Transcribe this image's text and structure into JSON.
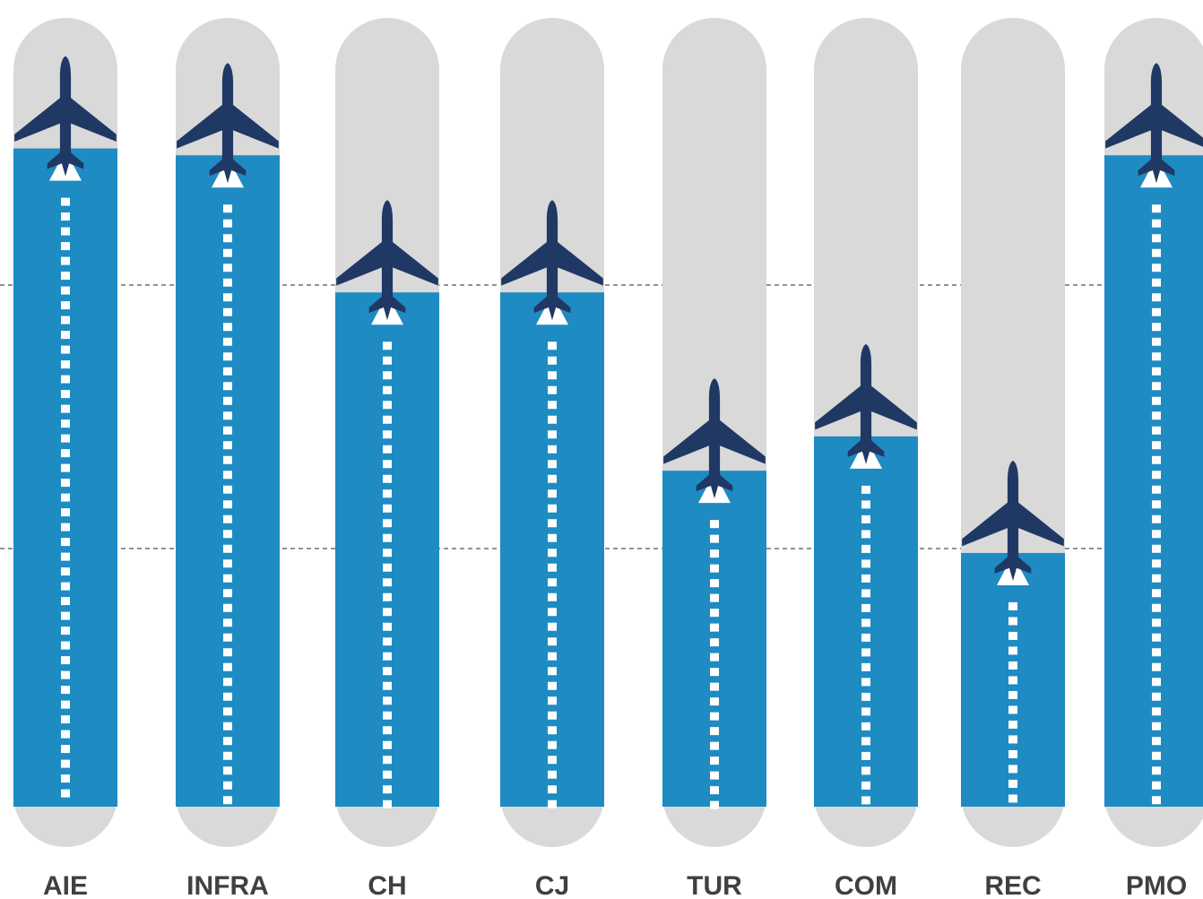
{
  "colors": {
    "track": "#d9d9d9",
    "fill": "#1e8bc3",
    "plane": "#1f3864",
    "arrow": "#ffffff",
    "gridline": "#44546a",
    "label": "#404040"
  },
  "icons": {
    "plane": "airplane-icon",
    "arrow": "arrow-up-icon"
  },
  "chart_data": {
    "type": "bar",
    "title": "",
    "xlabel": "",
    "ylabel": "",
    "grid": "dashed horizontal reference lines",
    "ylim": [
      0,
      100
    ],
    "categories": [
      "AIE",
      "INFRA",
      "CH",
      "CJ",
      "TUR",
      "COM",
      "REC",
      "PMO"
    ],
    "values": [
      96,
      95,
      75,
      75,
      49,
      54,
      37,
      95
    ]
  }
}
